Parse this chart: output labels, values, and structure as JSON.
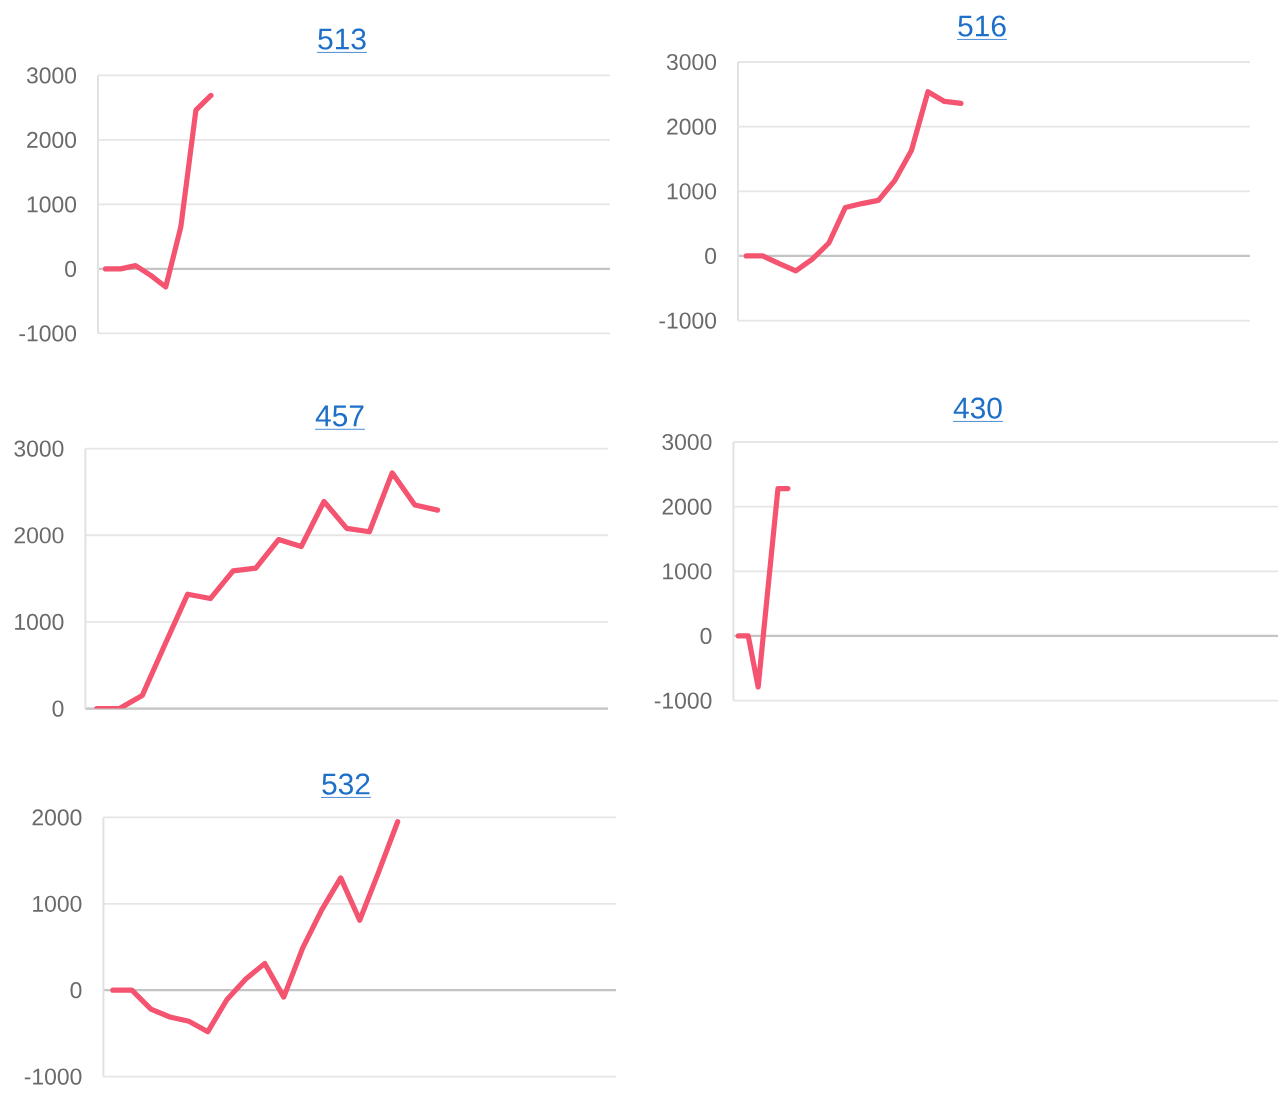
{
  "chart_data": [
    {
      "type": "line",
      "title": "513",
      "categories": [
        null,
        null,
        null,
        null,
        null,
        null,
        null,
        null,
        null,
        null,
        null,
        null,
        null,
        null,
        null,
        null,
        null,
        null,
        null,
        null,
        null,
        null,
        null,
        null,
        null,
        null,
        null,
        null,
        null,
        null,
        null,
        null,
        null,
        null
      ],
      "values": [
        0,
        0,
        50,
        -100,
        -280,
        650,
        2460,
        2690,
        null,
        null,
        null,
        null,
        null,
        null,
        null,
        null,
        null,
        null,
        null,
        null,
        null,
        null,
        null,
        null,
        null,
        null,
        null,
        null,
        null,
        null,
        null,
        null,
        null,
        null
      ],
      "color": "#f45470",
      "ylim": [
        -1000,
        3000
      ],
      "yticks": [
        -1000,
        0,
        1000,
        2000,
        3000
      ],
      "grid": "y",
      "tick_labels": "y"
    },
    {
      "type": "line",
      "title": "516",
      "categories": [
        null,
        null,
        null,
        null,
        null,
        null,
        null,
        null,
        null,
        null,
        null,
        null,
        null,
        null,
        null,
        null,
        null,
        null,
        null,
        null,
        null,
        null,
        null,
        null,
        null,
        null,
        null,
        null,
        null,
        null,
        null
      ],
      "values": [
        0,
        0,
        -120,
        -230,
        -50,
        200,
        750,
        810,
        860,
        1170,
        1630,
        2540,
        2390,
        2360,
        null,
        null,
        null,
        null,
        null,
        null,
        null,
        null,
        null,
        null,
        null,
        null,
        null,
        null,
        null,
        null,
        null
      ],
      "color": "#f45470",
      "ylim": [
        -1000,
        3000
      ],
      "yticks": [
        -1000,
        0,
        1000,
        2000,
        3000
      ],
      "grid": "y",
      "tick_labels": "y"
    },
    {
      "type": "line",
      "title": "457",
      "categories": [
        null,
        null,
        null,
        null,
        null,
        null,
        null,
        null,
        null,
        null,
        null,
        null,
        null,
        null,
        null,
        null,
        null,
        null,
        null,
        null,
        null,
        null,
        null
      ],
      "values": [
        0,
        0,
        150,
        740,
        1320,
        1270,
        1590,
        1620,
        1950,
        1870,
        2390,
        2080,
        2040,
        2720,
        2350,
        2290,
        null,
        null,
        null,
        null,
        null,
        null,
        null
      ],
      "color": "#f45470",
      "ylim": [
        0,
        3000
      ],
      "yticks": [
        0,
        1000,
        2000,
        3000
      ],
      "grid": "y",
      "tick_labels": "y"
    },
    {
      "type": "line",
      "title": "430",
      "categories": [
        null,
        null,
        null,
        null,
        null,
        null,
        null,
        null,
        null,
        null,
        null,
        null,
        null,
        null,
        null,
        null,
        null,
        null,
        null,
        null,
        null,
        null,
        null,
        null,
        null,
        null,
        null,
        null,
        null,
        null,
        null,
        null,
        null,
        null,
        null,
        null,
        null,
        null,
        null,
        null,
        null,
        null,
        null,
        null,
        null,
        null,
        null,
        null,
        null,
        null,
        null,
        null,
        null,
        null,
        null
      ],
      "values": [
        0,
        0,
        -790,
        750,
        2280,
        2280,
        null,
        null,
        null,
        null,
        null,
        null,
        null,
        null,
        null,
        null,
        null,
        null,
        null,
        null,
        null,
        null,
        null,
        null,
        null,
        null,
        null,
        null,
        null,
        null,
        null,
        null,
        null,
        null,
        null,
        null,
        null,
        null,
        null,
        null,
        null,
        null,
        null,
        null,
        null,
        null,
        null,
        null,
        null,
        null,
        null,
        null,
        null,
        null,
        null
      ],
      "color": "#f45470",
      "ylim": [
        -1000,
        3000
      ],
      "yticks": [
        -1000,
        0,
        1000,
        2000,
        3000
      ],
      "grid": "y",
      "tick_labels": "y"
    },
    {
      "type": "line",
      "title": "532",
      "categories": [
        null,
        null,
        null,
        null,
        null,
        null,
        null,
        null,
        null,
        null,
        null,
        null,
        null,
        null,
        null,
        null,
        null,
        null,
        null,
        null,
        null,
        null,
        null,
        null,
        null,
        null,
        null
      ],
      "values": [
        0,
        0,
        -220,
        -310,
        -360,
        -480,
        -110,
        130,
        310,
        -80,
        490,
        930,
        1300,
        810,
        1370,
        1950,
        null,
        null,
        null,
        null,
        null,
        null,
        null,
        null,
        null,
        null,
        null
      ],
      "color": "#f45470",
      "ylim": [
        -1000,
        2000
      ],
      "yticks": [
        -1000,
        0,
        1000,
        2000
      ],
      "grid": "y",
      "tick_labels": "y"
    }
  ]
}
